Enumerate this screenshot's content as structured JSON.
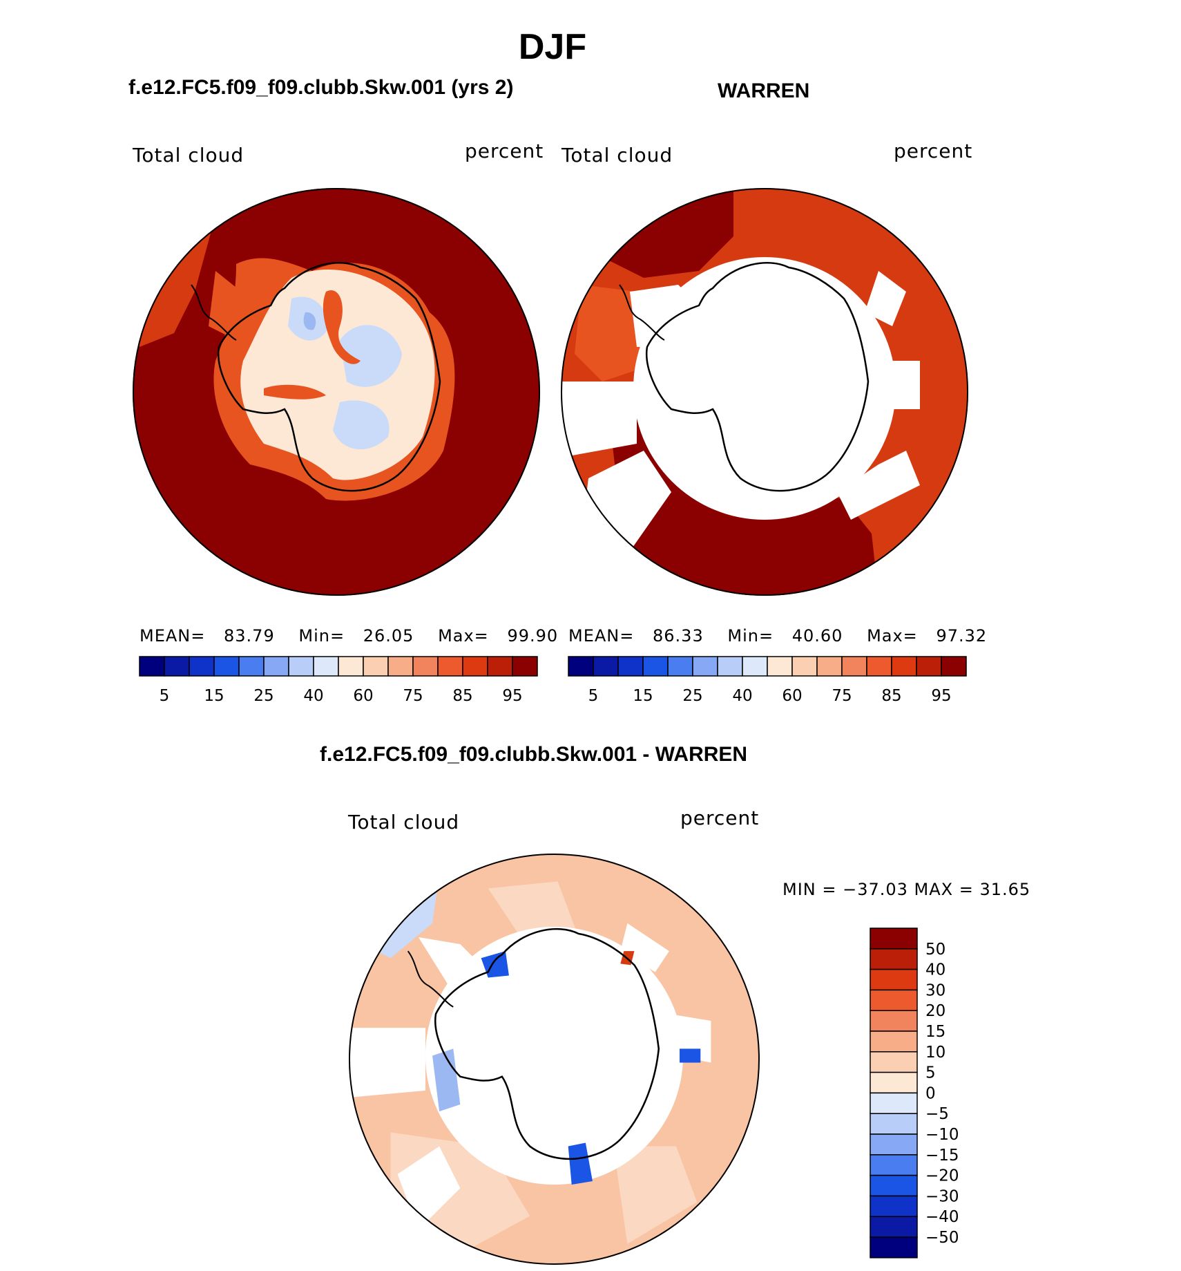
{
  "title": "DJF",
  "panels": [
    {
      "id": "model",
      "subtitle": "f.e12.FC5.f09_f09.clubb.Skw.001 (yrs 2)",
      "variable": "Total cloud",
      "units": "percent",
      "stats": {
        "mean_label": "MEAN=",
        "mean": "83.79",
        "min_label": "Min=",
        "min": "26.05",
        "max_label": "Max=",
        "max": "99.90"
      }
    },
    {
      "id": "obs",
      "subtitle": "WARREN",
      "variable": "Total cloud",
      "units": "percent",
      "stats": {
        "mean_label": "MEAN=",
        "mean": "86.33",
        "min_label": "Min=",
        "min": "40.60",
        "max_label": "Max=",
        "max": "97.32"
      }
    }
  ],
  "diff_panel": {
    "subtitle": "f.e12.FC5.f09_f09.clubb.Skw.001 - WARREN",
    "variable": "Total cloud",
    "units": "percent",
    "minmax": "MIN = −37.03 MAX =   31.65"
  },
  "colorbar_main": {
    "colors": [
      "#00007f",
      "#0a1aa5",
      "#0f33c9",
      "#1a55e6",
      "#4a7ef0",
      "#86a8f5",
      "#b8cdf8",
      "#dde9fb",
      "#fde8d6",
      "#fbcfb2",
      "#f6ad88",
      "#f1845d",
      "#ec5a2e",
      "#dd3a12",
      "#bb1f07",
      "#8b0000"
    ],
    "ticks": [
      "5",
      "15",
      "25",
      "40",
      "60",
      "75",
      "85",
      "95"
    ]
  },
  "colorbar_diff": {
    "colors": [
      "#00007f",
      "#0a1aa5",
      "#0f33c9",
      "#1a55e6",
      "#4a7ef0",
      "#86a8f5",
      "#b8cdf8",
      "#dde9fb",
      "#fde8d6",
      "#fbcfb2",
      "#f6ad88",
      "#f1845d",
      "#ec5a2e",
      "#dd3a12",
      "#bb1f07",
      "#8b0000"
    ],
    "ticks": [
      "50",
      "40",
      "30",
      "20",
      "15",
      "10",
      "5",
      "0",
      "−5",
      "−10",
      "−15",
      "−20",
      "−30",
      "−40",
      "−50"
    ]
  },
  "map_colors": {
    "dark_red": "#8b0000",
    "red": "#d63a10",
    "orange_red": "#e8541f",
    "pale": "#fde8d6",
    "light_blue": "#c9dbf8",
    "mid_blue": "#9bb8f2",
    "diff_bg": "#f8c4a4",
    "diff_light": "#fbd8c2",
    "blue_strong": "#1a55e6"
  }
}
